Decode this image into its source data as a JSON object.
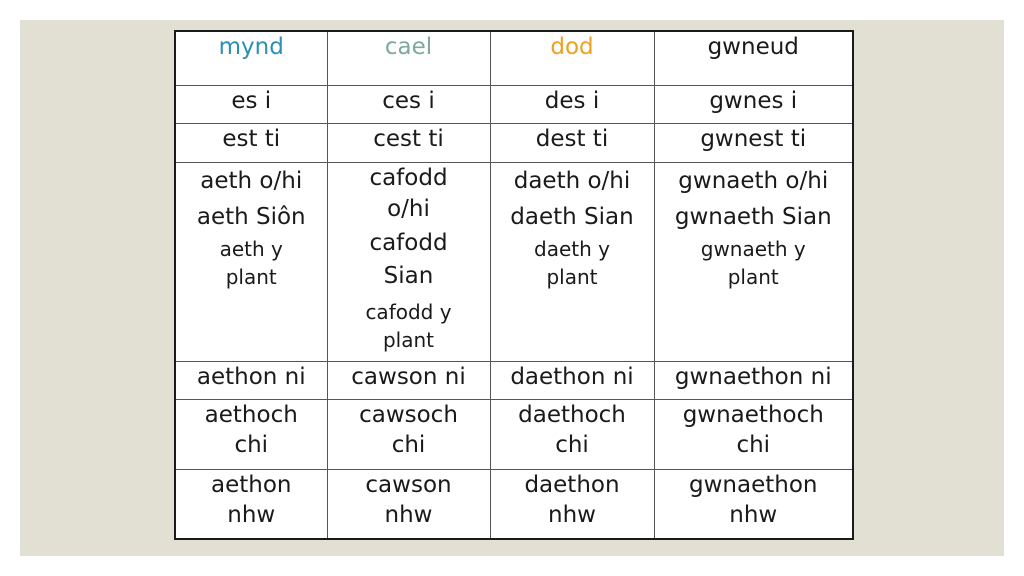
{
  "headers": [
    {
      "text": "mynd",
      "color": "#2e8fb5"
    },
    {
      "text": "cael",
      "color": "#7fa89f"
    },
    {
      "text": "dod",
      "color": "#f0a020"
    },
    {
      "text": "gwneud",
      "color": "#1a1a1a"
    }
  ],
  "rows": {
    "r1": [
      "es i",
      "ces i",
      "des i",
      "gwnes i"
    ],
    "r2": [
      "est ti",
      "cest ti",
      "dest ti",
      "gwnest ti"
    ],
    "r3": {
      "mynd": [
        "aeth o/hi",
        "aeth Siôn",
        "aeth y",
        "plant"
      ],
      "cael": [
        "cafodd",
        "o/hi",
        "cafodd",
        "Sian",
        "cafodd y",
        "plant"
      ],
      "dod": [
        "daeth o/hi",
        "daeth Sian",
        "daeth y",
        "plant"
      ],
      "gwneud": [
        "gwnaeth o/hi",
        "gwnaeth Sian",
        "gwnaeth y",
        "plant"
      ]
    },
    "r4": [
      "aethon ni",
      "cawson ni",
      "daethon ni",
      "gwnaethon ni"
    ],
    "r5": [
      [
        "aethoch",
        "chi"
      ],
      [
        "cawsoch",
        "chi"
      ],
      [
        "daethoch",
        "chi"
      ],
      [
        "gwnaethoch",
        "chi"
      ]
    ],
    "r6": [
      [
        "aethon",
        "nhw"
      ],
      [
        "cawson",
        "nhw"
      ],
      [
        "daethon",
        "nhw"
      ],
      [
        "gwnaethon",
        "nhw"
      ]
    ]
  }
}
